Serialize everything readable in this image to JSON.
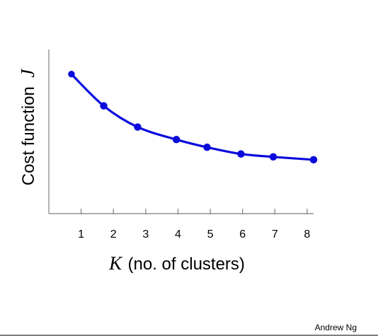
{
  "chart_data": {
    "type": "line",
    "x": [
      0.7,
      1.7,
      2.75,
      3.95,
      4.9,
      5.95,
      6.95,
      8.2
    ],
    "values": [
      14.5,
      11.2,
      9.0,
      7.7,
      6.9,
      6.2,
      5.9,
      5.6
    ],
    "x_ticks": [
      "1",
      "2",
      "3",
      "4",
      "5",
      "6",
      "7",
      "8"
    ],
    "xlim": [
      0,
      8.2
    ],
    "ylim": [
      0,
      20
    ],
    "xlabel_math": "K",
    "xlabel": "(no. of clusters)",
    "ylabel": "Cost function",
    "ylabel_math": "J",
    "grid": false,
    "line_color": "#0a0adc"
  },
  "footer": {
    "author": "Andrew Ng"
  }
}
